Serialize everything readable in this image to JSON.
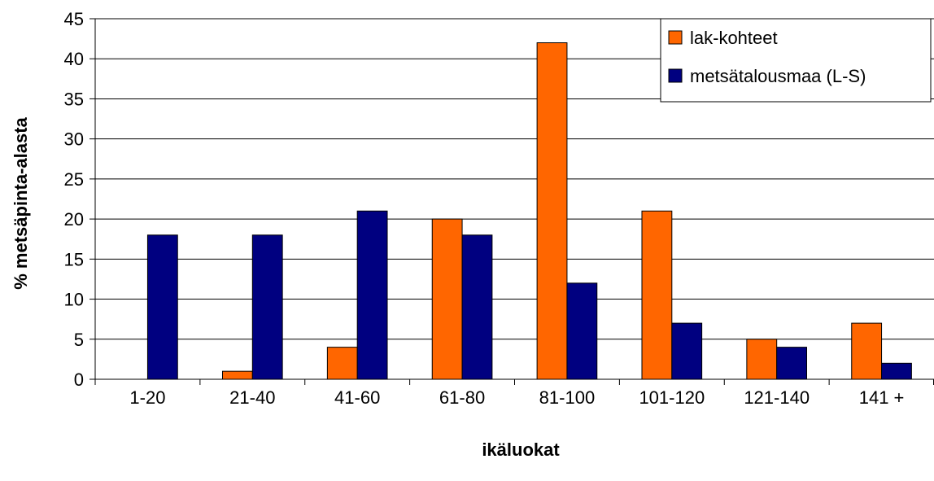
{
  "chart_data": {
    "type": "bar",
    "title": "",
    "xlabel": "ikäluokat",
    "ylabel": "% metsäpinta-alasta",
    "ylim": [
      0,
      45
    ],
    "ytick_step": 5,
    "grid": true,
    "legend_position": "top-right",
    "categories": [
      "1-20",
      "21-40",
      "41-60",
      "61-80",
      "81-100",
      "101-120",
      "121-140",
      "141 +"
    ],
    "series": [
      {
        "name": "lak-kohteet",
        "color": "#FF6600",
        "values": [
          0,
          1,
          4,
          20,
          42,
          21,
          5,
          7
        ]
      },
      {
        "name": "metsätalousmaa (L-S)",
        "color": "#000080",
        "values": [
          18,
          18,
          21,
          18,
          12,
          7,
          4,
          2
        ]
      }
    ]
  }
}
